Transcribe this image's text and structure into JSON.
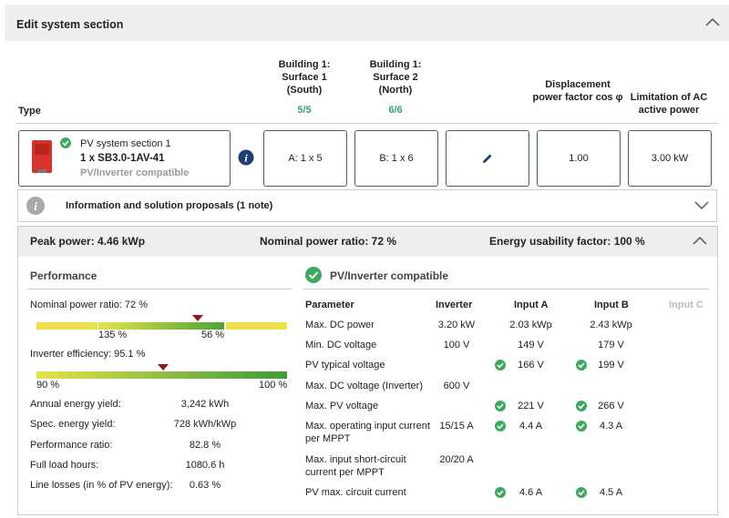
{
  "header": {
    "title": "Edit system section"
  },
  "columns": {
    "type": "Type",
    "surface_1": {
      "title": "Building 1: Surface 1 (South)",
      "count": "5/5"
    },
    "surface_2": {
      "title": "Building 1: Surface 2 (North)",
      "count": "6/6"
    },
    "power_factor": "Displacement power factor cos φ",
    "ac_limit": "Limitation of AC active power"
  },
  "section": {
    "name": "PV system section 1",
    "inverter": "1 x SB3.0-1AV-41",
    "status": "PV/Inverter compatible",
    "surface_1": "A: 1 x 5",
    "surface_2": "B: 1 x 6",
    "power_factor": "1.00",
    "ac_limit": "3.00 kW"
  },
  "info": {
    "text": "Information and solution proposals (1 note)"
  },
  "summary": {
    "peak_power": "Peak power: 4.46 kWp",
    "nominal_power_ratio": "Nominal power ratio: 72 %",
    "energy_usability": "Energy usability factor: 100 %"
  },
  "performance": {
    "title": "Performance",
    "nominal_ratio": "Nominal power ratio: 72 %",
    "ratio_scale": [
      "135 %",
      "56 %"
    ],
    "efficiency": "Inverter efficiency: 95.1 %",
    "efficiency_scale": [
      "90 %",
      "100 %"
    ],
    "rows": [
      [
        "Annual energy yield:",
        "3,242 kWh"
      ],
      [
        "Spec. energy yield:",
        "728 kWh/kWp"
      ],
      [
        "Performance ratio:",
        "82.8 %"
      ],
      [
        "Full load hours:",
        "1080.6  h"
      ],
      [
        "Line losses (in % of PV energy):",
        "0.63 %"
      ]
    ]
  },
  "compatibility": {
    "title": "PV/Inverter compatible",
    "headers": [
      "Parameter",
      "Inverter",
      "Input A",
      "Input B",
      "Input C"
    ],
    "rows": [
      {
        "parameter": "Max. DC power",
        "inverter": "3.20 kW",
        "input_a": "2.03 kWp",
        "input_b": "2.43 kWp",
        "checked": false
      },
      {
        "parameter": "Min. DC voltage",
        "inverter": "100 V",
        "input_a": "149 V",
        "input_b": "179 V",
        "checked": false
      },
      {
        "parameter": "PV typical voltage",
        "input_a": "166 V",
        "input_b": "199 V",
        "checked": true
      },
      {
        "parameter": "Max. DC voltage (Inverter)",
        "inverter": "600 V",
        "checked": false
      },
      {
        "parameter": "Max. PV voltage",
        "input_a": "221 V",
        "input_b": "266 V",
        "checked": true
      },
      {
        "parameter": "Max. operating input current per MPPT",
        "inverter": "15/15 A",
        "input_a": "4.4 A",
        "input_b": "4.3 A",
        "checked": true
      },
      {
        "parameter": "Max. input short-circuit current per MPPT",
        "inverter": "20/20 A",
        "checked": false
      },
      {
        "parameter": "PV max. circuit current",
        "input_a": "4.6 A",
        "input_b": "4.5 A",
        "checked": true
      }
    ]
  }
}
